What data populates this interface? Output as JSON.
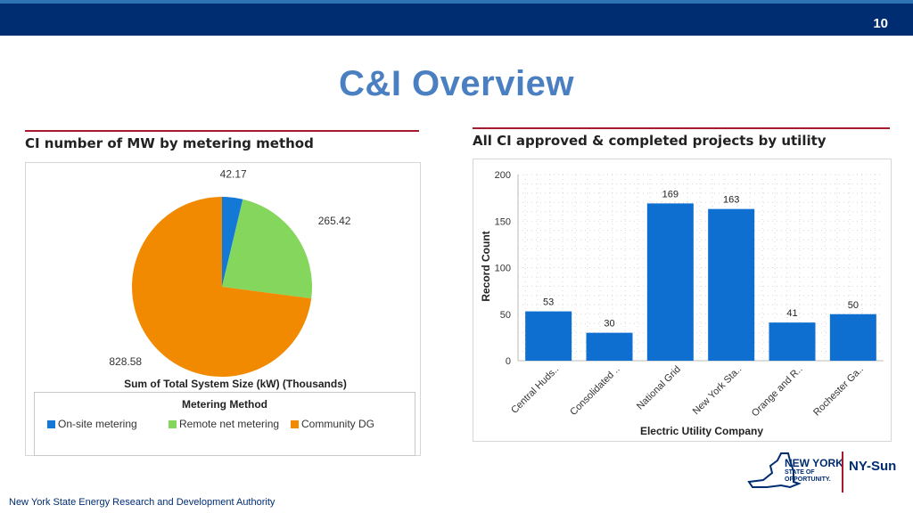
{
  "page_number": "10",
  "title": "C&I Overview",
  "footer": "New York State Energy Research and Development Authority",
  "logo": {
    "state_line1": "NEW YORK",
    "state_line2": "STATE OF",
    "state_line3": "OPPORTUNITY.",
    "brand": "NY-Sun"
  },
  "colors": {
    "header_bar": "#002d72",
    "title": "#4a7fc1",
    "rule": "#a6192e",
    "bar": "#0f6fd1"
  },
  "chart_data": [
    {
      "type": "pie",
      "title": "CI number of MW by metering method",
      "xlabel": "Sum of Total System Size (kW) (Thousands)",
      "legend_title": "Metering Method",
      "legend_position": "bottom",
      "categories": [
        "On-site metering",
        "Remote net metering",
        "Community DG"
      ],
      "values": [
        42.17,
        265.42,
        828.58
      ],
      "data_labels": [
        "42.17",
        "265.42",
        "828.58"
      ],
      "colors": [
        "#1479d6",
        "#84d65c",
        "#f18a00"
      ]
    },
    {
      "type": "bar",
      "title": "All CI approved & completed projects by utility",
      "xlabel": "Electric Utility Company",
      "ylabel": "Record Count",
      "ylim": [
        0,
        200
      ],
      "yticks": [
        "0",
        "50",
        "100",
        "150",
        "200"
      ],
      "grid": true,
      "categories": [
        "Central Huds..",
        "Consolidated ..",
        "National Grid",
        "New York Sta..",
        "Orange and R..",
        "Rochester Ga.."
      ],
      "values": [
        53,
        30,
        169,
        163,
        41,
        50
      ],
      "data_labels": [
        "53",
        "30",
        "169",
        "163",
        "41",
        "50"
      ],
      "color": "#0f6fd1"
    }
  ]
}
